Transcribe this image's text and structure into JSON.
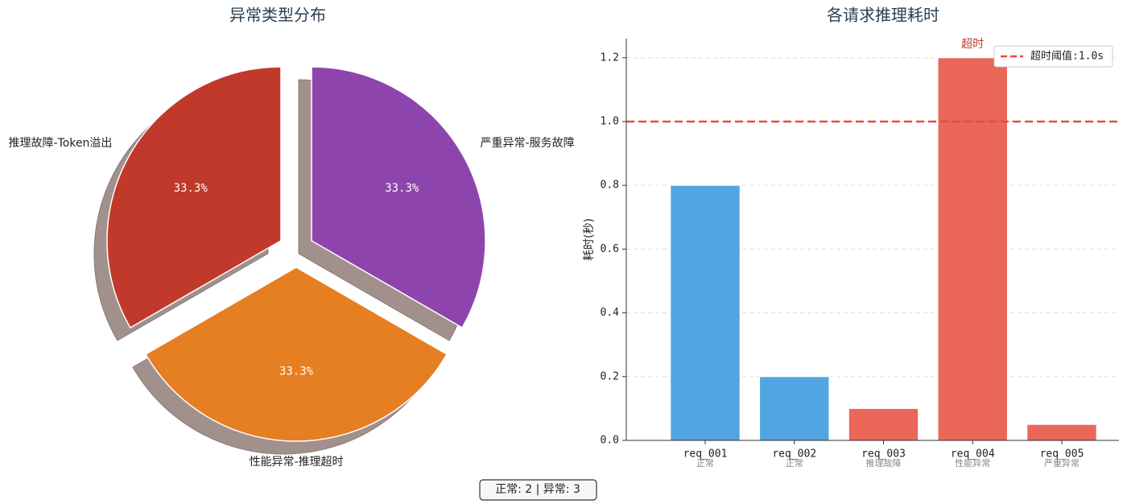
{
  "chart_data": [
    {
      "type": "pie",
      "title": "异常类型分布",
      "categories": [
        "推理故障-Token溢出",
        "性能异常-推理超时",
        "严重异常-服务故障"
      ],
      "values": [
        33.3,
        33.3,
        33.3
      ],
      "value_labels": [
        "33.3%",
        "33.3%",
        "33.3%"
      ],
      "colors": [
        "#c0392b",
        "#e67e22",
        "#8e44ad"
      ],
      "shadow": true,
      "explode": true
    },
    {
      "type": "bar",
      "title": "各请求推理耗时",
      "ylabel": "耗时(秒)",
      "categories": [
        "req_001",
        "req_002",
        "req_003",
        "req_004",
        "req_005"
      ],
      "sublabels": [
        "正常",
        "正常",
        "推理故障",
        "性能异常",
        "严重异常"
      ],
      "values": [
        0.8,
        0.2,
        0.1,
        1.2,
        0.05
      ],
      "colors": [
        "#52a5e0",
        "#52a5e0",
        "#ea6759",
        "#ea6759",
        "#ea6759"
      ],
      "ylim": [
        0,
        1.26
      ],
      "yticks": [
        {
          "value": 0,
          "label": "0.0"
        },
        0.2,
        0.4,
        0.6,
        0.8,
        {
          "value": 1,
          "label": "1.0"
        },
        1.2
      ],
      "grid": true,
      "threshold": {
        "value": 1.0,
        "label": "超时阈值:1.0s",
        "color": "#e74c3c"
      },
      "annotations": [
        {
          "text": "超时",
          "category": "req_004",
          "color": "#c0392b"
        }
      ],
      "legend": "upper right"
    }
  ],
  "footer": "正常: 2 | 异常: 3"
}
